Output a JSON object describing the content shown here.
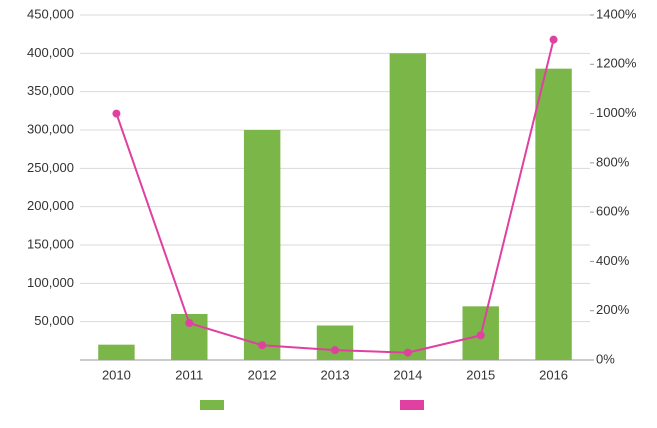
{
  "chart_data": {
    "type": "bar-line",
    "categories": [
      "2010",
      "2011",
      "2012",
      "2013",
      "2014",
      "2015",
      "2016"
    ],
    "series": [
      {
        "type": "bar",
        "color": "#7ab648",
        "values": [
          20000,
          60000,
          300000,
          45000,
          400000,
          70000,
          380000
        ]
      },
      {
        "type": "line",
        "axis": "y2",
        "color": "#e040a0",
        "values": [
          1000,
          150,
          60,
          40,
          30,
          100,
          1300
        ]
      }
    ],
    "ylim": [
      0,
      450000
    ],
    "yticks": [
      {
        "value": 50000,
        "label": "50,000"
      },
      {
        "value": 100000,
        "label": "100,000"
      },
      {
        "value": 150000,
        "label": "150,000"
      },
      {
        "value": 200000,
        "label": "200,000"
      },
      {
        "value": 250000,
        "label": "250,000"
      },
      {
        "value": 300000,
        "label": "300,000"
      },
      {
        "value": 350000,
        "label": "350,000"
      },
      {
        "value": 400000,
        "label": "400,000"
      },
      {
        "value": 450000,
        "label": "450,000"
      }
    ],
    "y2lim": [
      0,
      1400
    ],
    "y2ticks": [
      {
        "value": 0,
        "label": "0%"
      },
      {
        "value": 200,
        "label": "200%"
      },
      {
        "value": 400,
        "label": "400%"
      },
      {
        "value": 600,
        "label": "600%"
      },
      {
        "value": 800,
        "label": "800%"
      },
      {
        "value": 1000,
        "label": "1000%"
      },
      {
        "value": 1200,
        "label": "1200%"
      },
      {
        "value": 1400,
        "label": "1400%"
      }
    ],
    "grid": true
  }
}
